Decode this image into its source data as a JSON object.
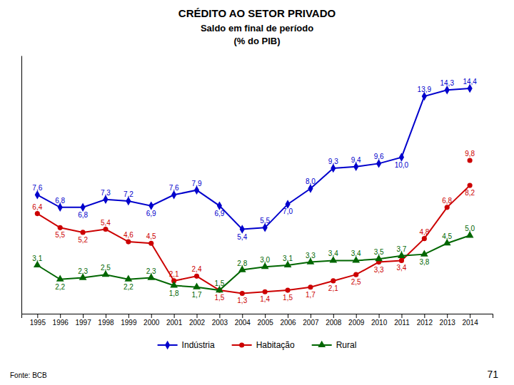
{
  "chart_data": {
    "type": "line",
    "title": "CRÉDITO AO SETOR PRIVADO",
    "subtitle": [
      "Saldo em final de período",
      "(% do PIB)"
    ],
    "annotations": [
      "Fonte: BCB",
      "71"
    ],
    "x": [
      1995,
      1996,
      1997,
      1998,
      1999,
      2000,
      2001,
      2002,
      2003,
      2004,
      2005,
      2006,
      2007,
      2008,
      2009,
      2010,
      2011,
      2012,
      2013,
      2014
    ],
    "xlim": [
      1994.3,
      2015.0
    ],
    "xticks": [
      1995,
      1996,
      1997,
      1998,
      1999,
      2000,
      2001,
      2002,
      2003,
      2004,
      2005,
      2006,
      2007,
      2008,
      2009,
      2010,
      2011,
      2012,
      2013,
      2014
    ],
    "ylim": [
      0,
      16.5
    ],
    "yticks": [],
    "tick_labels": "x",
    "grid": false,
    "legend": "bottom",
    "data_labels": true,
    "series": [
      {
        "name": "Indústria",
        "color": "#0000cc",
        "marker": "diamond",
        "line_style": "solid",
        "values": [
          7.6,
          6.8,
          6.8,
          7.3,
          7.2,
          6.9,
          7.6,
          7.9,
          6.9,
          5.4,
          5.5,
          7.0,
          8.0,
          9.3,
          9.4,
          9.6,
          10.0,
          13.9,
          14.3,
          14.4
        ],
        "value_labels": [
          "7,6",
          "6,8",
          "6,8",
          "7,3",
          "7,2",
          "6,9",
          "7,6",
          "7,9",
          "6,9",
          "5,4",
          "5,5",
          "7,0",
          "8,0",
          "9,3",
          "9,4",
          "9,6",
          "10,0",
          "13,9",
          "14,3",
          "14,4"
        ]
      },
      {
        "name": "Habitação",
        "color": "#cc0000",
        "marker": "circle",
        "line_style": "solid",
        "values": [
          6.4,
          5.5,
          5.2,
          5.4,
          4.6,
          4.5,
          2.1,
          2.4,
          1.5,
          1.3,
          1.4,
          1.5,
          1.7,
          2.1,
          2.5,
          3.3,
          3.4,
          4.8,
          6.8,
          8.2
        ],
        "value_labels": [
          "6,4",
          "5,5",
          "5,2",
          "5,4",
          "4,6",
          "4,5",
          "2,1",
          "2,4",
          "1,5",
          "1,3",
          "1,4",
          "1,5",
          "1,7",
          "2,1",
          "2,5",
          "3,3",
          "3,4",
          "4,8",
          "6,8",
          "8,2"
        ]
      },
      {
        "name": "Rural",
        "color": "#006600",
        "marker": "triangle",
        "line_style": "solid",
        "values": [
          3.1,
          2.2,
          2.3,
          2.5,
          2.2,
          2.3,
          1.8,
          1.7,
          1.5,
          2.8,
          3.0,
          3.1,
          3.3,
          3.4,
          3.4,
          3.5,
          3.7,
          3.8,
          4.5,
          5.0
        ],
        "value_labels": [
          "3,1",
          "2,2",
          "2,3",
          "2,5",
          "2,2",
          "2,3",
          "1,8",
          "1,7",
          "1,5",
          "2,8",
          "3,0",
          "3,1",
          "3,3",
          "3,4",
          "3,4",
          "3,5",
          "3,7",
          "3,8",
          "4,5",
          "5,0"
        ]
      },
      {
        "color": "#cc0000",
        "marker": "circle",
        "line_style": "none",
        "values": [
          null,
          null,
          null,
          null,
          null,
          null,
          null,
          null,
          null,
          null,
          null,
          null,
          null,
          null,
          null,
          null,
          null,
          null,
          null,
          9.8
        ],
        "value_labels": [
          null,
          null,
          null,
          null,
          null,
          null,
          null,
          null,
          null,
          null,
          null,
          null,
          null,
          null,
          null,
          null,
          null,
          null,
          null,
          "9,8"
        ]
      }
    ]
  }
}
